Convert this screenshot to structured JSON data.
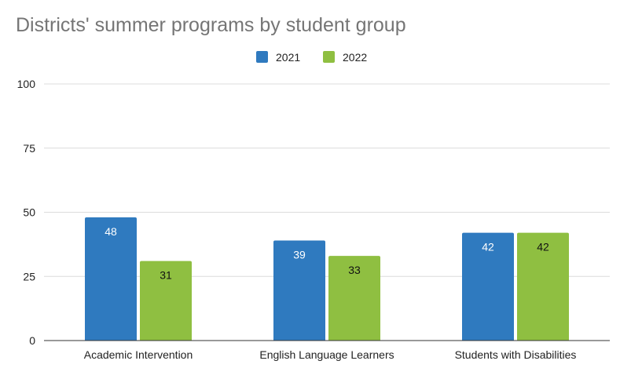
{
  "chart_data": {
    "type": "bar",
    "title": "Districts' summer programs by student group",
    "xlabel": "",
    "ylabel": "",
    "categories": [
      "Academic Intervention",
      "English Language Learners",
      "Students with Disabilities"
    ],
    "series": [
      {
        "name": "2021",
        "values": [
          48,
          39,
          42
        ],
        "color": "#2f7abf",
        "label_color": "#ffffff"
      },
      {
        "name": "2022",
        "values": [
          31,
          33,
          42
        ],
        "color": "#8fbf41",
        "label_color": "#111111"
      }
    ],
    "ylim": [
      0,
      100
    ],
    "yticks": [
      0,
      25,
      50,
      75,
      100
    ],
    "grid": true,
    "legend_position": "top-center",
    "data_labels": true
  }
}
